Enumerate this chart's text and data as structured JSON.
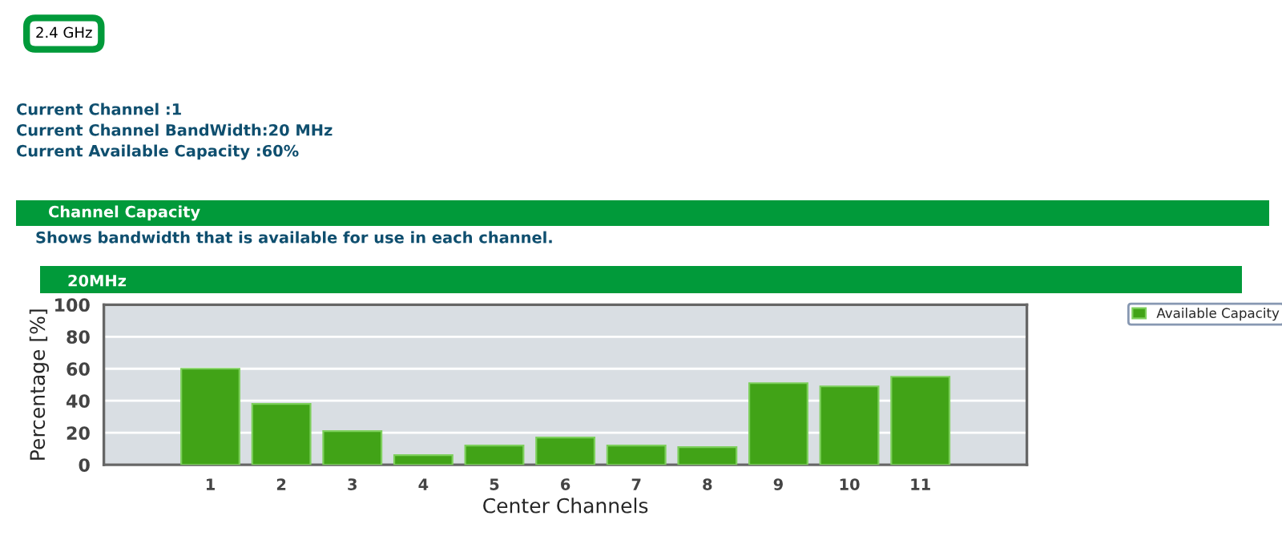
{
  "chart_data": {
    "type": "bar",
    "title": "Channel Capacity",
    "subtitle": "Shows bandwidth that is available for use in each channel.",
    "annotations": [
      "2.4 GHz",
      "Current Channel :1",
      "Current Channel BandWidth:20 MHz",
      "Current Available Capacity :60%",
      "20MHz"
    ],
    "xlabel": "Center Channels",
    "ylabel": "Percentage [%]",
    "categories": [
      "1",
      "2",
      "3",
      "4",
      "5",
      "6",
      "7",
      "8",
      "9",
      "10",
      "11"
    ],
    "series": [
      {
        "name": "Available Capacity",
        "color": "#41a317",
        "values": [
          60,
          38,
          21,
          6,
          12,
          17,
          12,
          11,
          51,
          49,
          55
        ]
      }
    ],
    "ylim": [
      0,
      100
    ],
    "yticks": [
      0,
      20,
      40,
      60,
      80,
      100
    ],
    "grid": "y",
    "legend": "right"
  }
}
